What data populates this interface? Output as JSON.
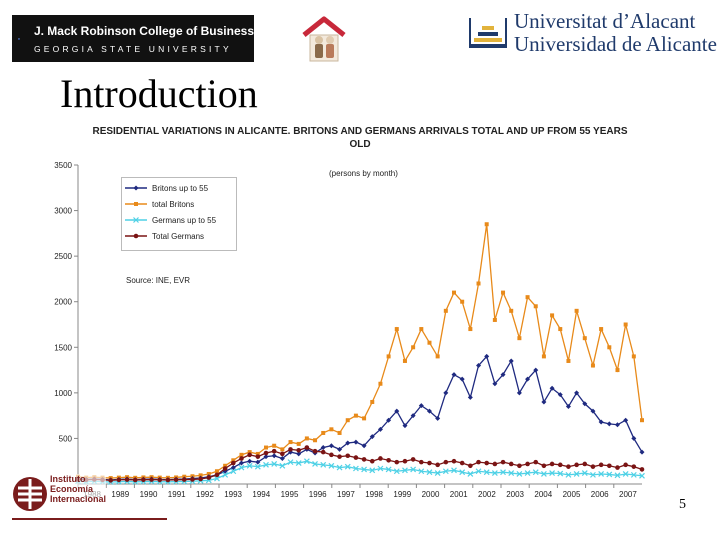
{
  "header": {
    "gsu_logo_line1": "J. Mack Robinson College of Business",
    "gsu_logo_line2": "GEORGIA STATE UNIVERSITY",
    "ua_logo_line1": "Universitat d’Alacant",
    "ua_logo_line2": "Universidad de Alicante",
    "ua_color": "#1f3a6b"
  },
  "slide": {
    "title": "Introduction",
    "page_number": "5"
  },
  "footer_logo": {
    "line1": "Instituto",
    "line2": "Economía",
    "line3": "Internacional",
    "color": "#7a1c1c"
  },
  "chart_data": {
    "type": "line",
    "title": "RESIDENTIAL VARIATIONS IN ALICANTE. BRITONS AND GERMANS ARRIVALS TOTAL AND UP FROM 55 YEARS OLD",
    "unit_note": "(persons by month)",
    "source_note": "Source: INE, EVR",
    "xlabel": "",
    "ylabel": "",
    "ylim": [
      0,
      3500
    ],
    "yticks": [
      500,
      1000,
      1500,
      2000,
      2500,
      3000,
      3500
    ],
    "x_tick_labels": [
      "1988",
      "1989",
      "1990",
      "1991",
      "1992",
      "1993",
      "1994",
      "1995",
      "1996",
      "1997",
      "1998",
      "1999",
      "2000",
      "2001",
      "2002",
      "2003",
      "2004",
      "2005",
      "2006",
      "2007"
    ],
    "grid": false,
    "legend_position": "top-left",
    "series": [
      {
        "name": "Britons up to 55",
        "color": "#1f2a80",
        "marker": "diamond",
        "values": [
          60,
          50,
          55,
          50,
          45,
          50,
          55,
          48,
          52,
          55,
          50,
          48,
          52,
          55,
          60,
          65,
          80,
          100,
          140,
          180,
          230,
          250,
          240,
          300,
          310,
          280,
          350,
          330,
          380,
          340,
          400,
          420,
          380,
          450,
          460,
          420,
          520,
          600,
          700,
          800,
          640,
          750,
          860,
          800,
          720,
          1000,
          1200,
          1150,
          950,
          1300,
          1400,
          1100,
          1200,
          1350,
          1000,
          1150,
          1250,
          900,
          1050,
          980,
          850,
          1000,
          880,
          800,
          680,
          660,
          650,
          700,
          500,
          350
        ]
      },
      {
        "name": "total Britons",
        "color": "#e88a1a",
        "marker": "square",
        "values": [
          80,
          70,
          75,
          70,
          65,
          70,
          75,
          68,
          72,
          75,
          70,
          68,
          72,
          80,
          85,
          95,
          110,
          140,
          200,
          260,
          320,
          350,
          330,
          400,
          420,
          380,
          460,
          440,
          500,
          480,
          560,
          600,
          560,
          700,
          750,
          720,
          900,
          1100,
          1400,
          1700,
          1350,
          1500,
          1700,
          1550,
          1400,
          1900,
          2100,
          2000,
          1700,
          2200,
          2850,
          1800,
          2100,
          1900,
          1600,
          2050,
          1950,
          1400,
          1850,
          1700,
          1350,
          1900,
          1600,
          1300,
          1700,
          1500,
          1250,
          1750,
          1400,
          700
        ]
      },
      {
        "name": "Germans up to 55",
        "color": "#4fd1e6",
        "marker": "x",
        "values": [
          30,
          25,
          30,
          25,
          22,
          25,
          28,
          24,
          26,
          28,
          25,
          24,
          26,
          28,
          30,
          35,
          40,
          60,
          100,
          140,
          180,
          200,
          190,
          210,
          220,
          200,
          240,
          230,
          250,
          220,
          210,
          200,
          180,
          190,
          170,
          160,
          150,
          170,
          160,
          140,
          150,
          160,
          140,
          130,
          120,
          140,
          150,
          130,
          110,
          140,
          130,
          120,
          130,
          120,
          110,
          120,
          130,
          110,
          120,
          115,
          100,
          110,
          120,
          100,
          110,
          105,
          95,
          110,
          100,
          90
        ]
      },
      {
        "name": "Total Germans",
        "color": "#7a1414",
        "marker": "circle",
        "values": [
          50,
          45,
          50,
          45,
          40,
          45,
          48,
          44,
          46,
          48,
          45,
          44,
          46,
          48,
          50,
          55,
          70,
          100,
          170,
          230,
          280,
          320,
          300,
          340,
          360,
          330,
          380,
          370,
          400,
          360,
          350,
          320,
          300,
          310,
          290,
          270,
          250,
          280,
          260,
          240,
          250,
          270,
          240,
          230,
          210,
          240,
          250,
          230,
          200,
          240,
          230,
          220,
          240,
          220,
          200,
          220,
          240,
          200,
          220,
          210,
          190,
          210,
          220,
          190,
          210,
          200,
          180,
          210,
          190,
          160
        ]
      }
    ]
  }
}
